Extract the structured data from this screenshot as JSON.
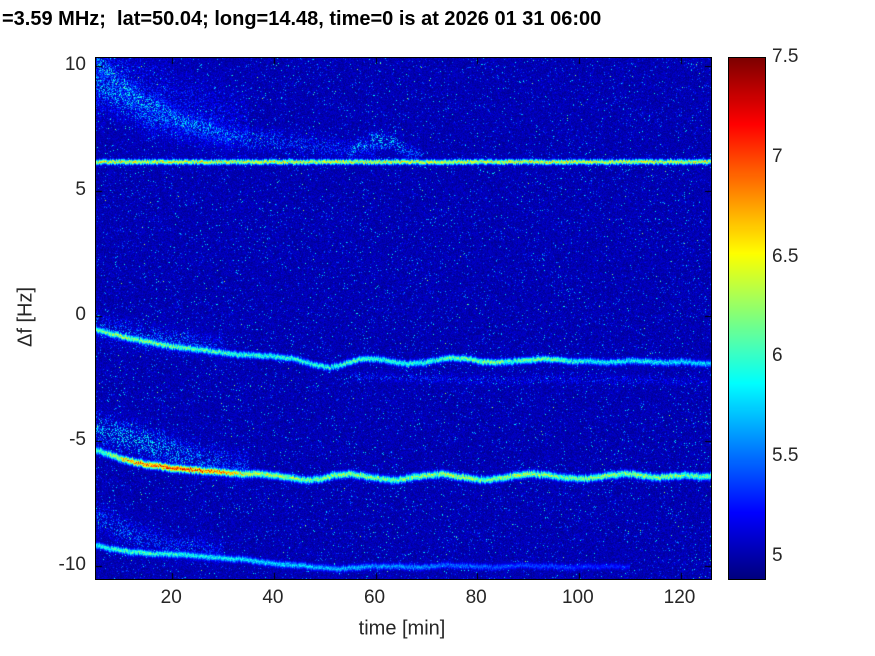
{
  "chart_data": {
    "type": "heatmap",
    "subtype": "doppler-spectrogram",
    "title": "=3.59 MHz;  lat=50.04; long=14.48, time=0 is at 2026 01 31 06:00",
    "xlabel": "time [min]",
    "ylabel": "Δf [Hz]",
    "xlim": [
      5,
      126
    ],
    "ylim": [
      -10.52,
      10.32
    ],
    "clim": [
      4.89,
      7.5
    ],
    "x_ticks": [
      20,
      40,
      60,
      80,
      100,
      120
    ],
    "y_ticks": [
      -10,
      -5,
      0,
      5,
      10
    ],
    "colorbar_ticks": [
      5,
      5.5,
      6,
      6.5,
      7,
      7.5
    ],
    "colormap": "jet",
    "grid": false,
    "legend": "none",
    "background_value": 4.93,
    "traces": [
      {
        "name": "carrier-line",
        "diffuse": false,
        "width_hz": 0.07,
        "points": [
          [
            5,
            6.18,
            6.5
          ],
          [
            126,
            6.18,
            6.5
          ]
        ]
      },
      {
        "name": "upper-left-cloud",
        "diffuse": true,
        "width_hz": 1.1,
        "points": [
          [
            5,
            9.5,
            5.4
          ],
          [
            15,
            8.8,
            5.35
          ],
          [
            25,
            8.2,
            5.3
          ],
          [
            35,
            7.6,
            5.2
          ]
        ]
      },
      {
        "name": "upper-descending-wisp-1",
        "diffuse": true,
        "width_hz": 0.3,
        "points": [
          [
            5,
            10.3,
            5.9
          ],
          [
            8,
            9.6,
            5.9
          ],
          [
            12,
            8.9,
            5.85
          ],
          [
            16,
            8.4,
            5.8
          ],
          [
            20,
            8.0,
            5.75
          ],
          [
            25,
            7.6,
            5.7
          ],
          [
            30,
            7.3,
            5.6
          ],
          [
            36,
            7.1,
            5.5
          ],
          [
            44,
            6.9,
            5.45
          ],
          [
            52,
            6.75,
            5.4
          ],
          [
            60,
            6.65,
            5.3
          ]
        ]
      },
      {
        "name": "upper-descending-wisp-2",
        "diffuse": true,
        "width_hz": 0.45,
        "points": [
          [
            5,
            9.3,
            5.75
          ],
          [
            10,
            8.6,
            5.7
          ],
          [
            15,
            8.1,
            5.6
          ],
          [
            20,
            7.75,
            5.5
          ],
          [
            26,
            7.45,
            5.4
          ],
          [
            32,
            7.2,
            5.3
          ]
        ]
      },
      {
        "name": "upper-bump",
        "diffuse": true,
        "width_hz": 0.22,
        "points": [
          [
            54,
            6.4,
            5.6
          ],
          [
            57,
            6.8,
            5.8
          ],
          [
            60,
            7.1,
            5.9
          ],
          [
            63,
            7.0,
            5.8
          ],
          [
            66,
            6.6,
            5.6
          ],
          [
            69,
            6.4,
            5.4
          ]
        ]
      },
      {
        "name": "mid-trace",
        "diffuse": false,
        "width_hz": 0.09,
        "points": [
          [
            5,
            -0.55,
            6.1
          ],
          [
            8,
            -0.7,
            6.3
          ],
          [
            12,
            -0.9,
            6.3
          ],
          [
            16,
            -1.05,
            6.25
          ],
          [
            20,
            -1.2,
            6.2
          ],
          [
            24,
            -1.3,
            6.15
          ],
          [
            28,
            -1.4,
            6.1
          ],
          [
            32,
            -1.5,
            6.05
          ],
          [
            36,
            -1.55,
            6.0
          ],
          [
            40,
            -1.6,
            6.0
          ],
          [
            44,
            -1.7,
            6.0
          ],
          [
            48,
            -1.95,
            6.0
          ],
          [
            51,
            -2.05,
            6.0
          ],
          [
            54,
            -1.9,
            6.05
          ],
          [
            57,
            -1.7,
            6.1
          ],
          [
            60,
            -1.7,
            6.0
          ],
          [
            63,
            -1.8,
            6.0
          ],
          [
            66,
            -1.9,
            6.0
          ],
          [
            69,
            -1.85,
            6.0
          ],
          [
            72,
            -1.75,
            6.05
          ],
          [
            75,
            -1.65,
            6.15
          ],
          [
            78,
            -1.7,
            6.2
          ],
          [
            81,
            -1.8,
            6.25
          ],
          [
            84,
            -1.85,
            6.2
          ],
          [
            87,
            -1.8,
            6.1
          ],
          [
            90,
            -1.75,
            6.2
          ],
          [
            93,
            -1.7,
            6.25
          ],
          [
            96,
            -1.75,
            6.15
          ],
          [
            99,
            -1.8,
            6.0
          ],
          [
            102,
            -1.8,
            5.95
          ],
          [
            105,
            -1.85,
            5.9
          ],
          [
            108,
            -1.8,
            5.9
          ],
          [
            111,
            -1.78,
            5.9
          ],
          [
            114,
            -1.82,
            5.9
          ],
          [
            117,
            -1.85,
            5.85
          ],
          [
            120,
            -1.8,
            5.85
          ],
          [
            123,
            -1.85,
            5.8
          ],
          [
            126,
            -1.9,
            5.8
          ]
        ]
      },
      {
        "name": "mid-trace-halo",
        "diffuse": true,
        "width_hz": 0.35,
        "points": [
          [
            5,
            -0.4,
            5.6
          ],
          [
            10,
            -0.7,
            5.6
          ],
          [
            15,
            -0.9,
            5.55
          ],
          [
            20,
            -1.0,
            5.5
          ],
          [
            25,
            -1.1,
            5.45
          ],
          [
            30,
            -1.3,
            5.4
          ]
        ]
      },
      {
        "name": "faint-sub-trace",
        "diffuse": true,
        "width_hz": 0.14,
        "points": [
          [
            55,
            -2.4,
            5.35
          ],
          [
            70,
            -2.5,
            5.35
          ],
          [
            85,
            -2.55,
            5.3
          ],
          [
            100,
            -2.5,
            5.3
          ],
          [
            115,
            -2.55,
            5.25
          ],
          [
            126,
            -2.6,
            5.2
          ]
        ]
      },
      {
        "name": "strong-trace",
        "diffuse": false,
        "width_hz": 0.1,
        "points": [
          [
            5,
            -5.35,
            6.0
          ],
          [
            8,
            -5.55,
            6.3
          ],
          [
            10,
            -5.7,
            6.6
          ],
          [
            13,
            -5.85,
            6.9
          ],
          [
            16,
            -5.95,
            7.0
          ],
          [
            19,
            -6.05,
            7.1
          ],
          [
            22,
            -6.1,
            7.05
          ],
          [
            25,
            -6.15,
            6.95
          ],
          [
            28,
            -6.2,
            6.9
          ],
          [
            31,
            -6.25,
            6.7
          ],
          [
            34,
            -6.3,
            6.5
          ],
          [
            37,
            -6.3,
            6.4
          ],
          [
            40,
            -6.35,
            6.35
          ],
          [
            43,
            -6.45,
            6.3
          ],
          [
            46,
            -6.55,
            6.25
          ],
          [
            49,
            -6.5,
            6.2
          ],
          [
            52,
            -6.35,
            6.3
          ],
          [
            55,
            -6.3,
            6.3
          ],
          [
            58,
            -6.4,
            6.25
          ],
          [
            61,
            -6.5,
            6.2
          ],
          [
            64,
            -6.55,
            6.2
          ],
          [
            67,
            -6.45,
            6.3
          ],
          [
            70,
            -6.35,
            6.3
          ],
          [
            73,
            -6.3,
            6.35
          ],
          [
            76,
            -6.4,
            6.35
          ],
          [
            79,
            -6.5,
            6.3
          ],
          [
            82,
            -6.55,
            6.2
          ],
          [
            85,
            -6.45,
            6.3
          ],
          [
            88,
            -6.35,
            6.35
          ],
          [
            91,
            -6.3,
            6.35
          ],
          [
            94,
            -6.35,
            6.3
          ],
          [
            97,
            -6.45,
            6.2
          ],
          [
            100,
            -6.5,
            6.2
          ],
          [
            103,
            -6.45,
            6.3
          ],
          [
            106,
            -6.35,
            6.3
          ],
          [
            109,
            -6.3,
            6.25
          ],
          [
            112,
            -6.35,
            6.3
          ],
          [
            115,
            -6.45,
            6.2
          ],
          [
            118,
            -6.4,
            6.3
          ],
          [
            121,
            -6.35,
            6.2
          ],
          [
            124,
            -6.4,
            6.2
          ],
          [
            126,
            -6.4,
            6.2
          ]
        ]
      },
      {
        "name": "strong-trace-halo",
        "diffuse": true,
        "width_hz": 0.45,
        "points": [
          [
            5,
            -4.4,
            5.7
          ],
          [
            10,
            -4.8,
            5.8
          ],
          [
            15,
            -5.1,
            5.8
          ],
          [
            20,
            -5.4,
            5.7
          ],
          [
            25,
            -5.7,
            5.6
          ],
          [
            30,
            -5.9,
            5.5
          ],
          [
            35,
            -6.1,
            5.4
          ]
        ]
      },
      {
        "name": "lower-trace",
        "diffuse": false,
        "width_hz": 0.09,
        "points": [
          [
            5,
            -9.15,
            5.9
          ],
          [
            8,
            -9.3,
            6.0
          ],
          [
            11,
            -9.4,
            6.1
          ],
          [
            14,
            -9.45,
            6.1
          ],
          [
            17,
            -9.5,
            6.0
          ],
          [
            20,
            -9.5,
            6.0
          ],
          [
            23,
            -9.55,
            5.95
          ],
          [
            26,
            -9.6,
            5.9
          ],
          [
            29,
            -9.65,
            5.9
          ],
          [
            32,
            -9.7,
            5.9
          ],
          [
            35,
            -9.75,
            5.85
          ],
          [
            38,
            -9.85,
            5.8
          ],
          [
            41,
            -9.9,
            5.8
          ],
          [
            44,
            -9.95,
            5.8
          ],
          [
            47,
            -10.0,
            5.75
          ],
          [
            50,
            -10.05,
            5.7
          ],
          [
            53,
            -10.1,
            5.7
          ],
          [
            56,
            -10.05,
            5.7
          ],
          [
            59,
            -10.0,
            5.65
          ],
          [
            62,
            -10.0,
            5.6
          ],
          [
            65,
            -10.0,
            5.6
          ],
          [
            68,
            -10.05,
            5.6
          ],
          [
            71,
            -10.0,
            5.55
          ],
          [
            74,
            -9.95,
            5.5
          ],
          [
            77,
            -10.0,
            5.5
          ],
          [
            80,
            -10.0,
            5.5
          ],
          [
            83,
            -10.05,
            5.45
          ],
          [
            86,
            -10.0,
            5.45
          ],
          [
            89,
            -9.95,
            5.4
          ],
          [
            92,
            -10.0,
            5.4
          ],
          [
            95,
            -10.0,
            5.4
          ],
          [
            98,
            -10.05,
            5.35
          ],
          [
            101,
            -10.0,
            5.35
          ],
          [
            104,
            -10.0,
            5.3
          ],
          [
            107,
            -10.0,
            5.3
          ],
          [
            110,
            -10.0,
            5.3
          ]
        ]
      },
      {
        "name": "lower-trace-halo",
        "diffuse": true,
        "width_hz": 0.4,
        "points": [
          [
            5,
            -8.0,
            5.5
          ],
          [
            10,
            -8.6,
            5.5
          ],
          [
            15,
            -9.0,
            5.45
          ],
          [
            20,
            -9.2,
            5.4
          ],
          [
            25,
            -9.3,
            5.4
          ],
          [
            30,
            -9.4,
            5.3
          ]
        ]
      }
    ]
  }
}
